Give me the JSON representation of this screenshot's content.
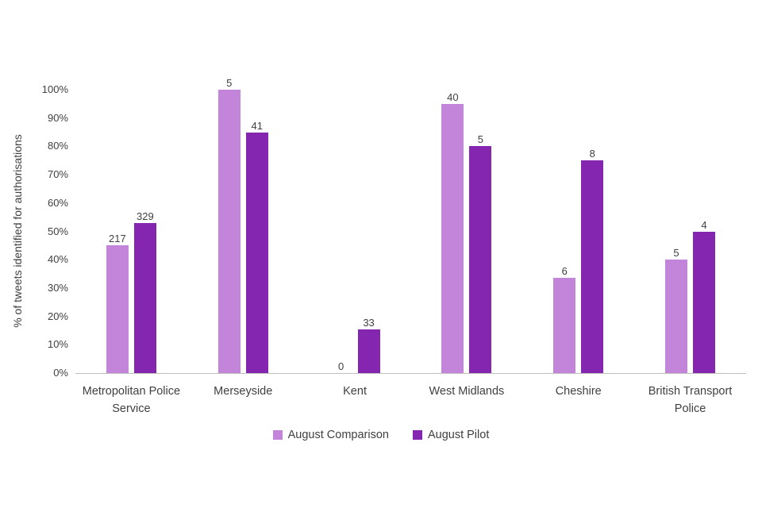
{
  "chart_data": {
    "type": "bar",
    "title": "",
    "ylabel": "% of tweets identified for authorisations",
    "xlabel": "",
    "ylim": [
      0,
      100
    ],
    "ytick_step": 10,
    "ytick_suffix": "%",
    "grid": false,
    "legend_position": "bottom",
    "categories": [
      "Metropolitan Police Service",
      "Merseyside",
      "Kent",
      "West Midlands",
      "Cheshire",
      "British Transport Police"
    ],
    "series": [
      {
        "name": "August Comparison",
        "color": "#c285d9",
        "values_pct": [
          45,
          100,
          0,
          95,
          33.5,
          40
        ],
        "bar_labels": [
          "217",
          "5",
          "0",
          "40",
          "6",
          "5"
        ]
      },
      {
        "name": "August Pilot",
        "color": "#8426b0",
        "values_pct": [
          53,
          85,
          15.5,
          80,
          75,
          50
        ],
        "bar_labels": [
          "329",
          "41",
          "33",
          "5",
          "8",
          "4"
        ]
      }
    ]
  }
}
